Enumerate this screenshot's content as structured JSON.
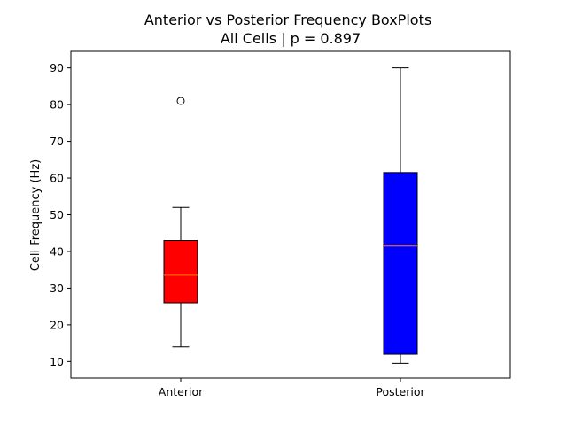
{
  "chart_data": {
    "type": "boxplot",
    "title": "Anterior vs Posterior Frequency BoxPlots",
    "subtitle": "All Cells | p = 0.897",
    "ylabel": "Cell Frequency (Hz)",
    "xlabel": "",
    "ylim": [
      5.5,
      94.5
    ],
    "yticks": [
      10,
      20,
      30,
      40,
      50,
      60,
      70,
      80,
      90
    ],
    "grid": false,
    "categories": [
      "Anterior",
      "Posterior"
    ],
    "boxes": [
      {
        "category": "Anterior",
        "color": "#ff0000",
        "median_color": "#ff7f0e",
        "whisker_low": 14,
        "q1": 26,
        "median": 33.5,
        "q3": 43,
        "whisker_high": 52,
        "outliers": [
          81
        ]
      },
      {
        "category": "Posterior",
        "color": "#0000ff",
        "median_color": "#ff7f0e",
        "whisker_low": 9.5,
        "q1": 12,
        "median": 41.5,
        "q3": 61.5,
        "whisker_high": 90,
        "outliers": []
      }
    ]
  }
}
